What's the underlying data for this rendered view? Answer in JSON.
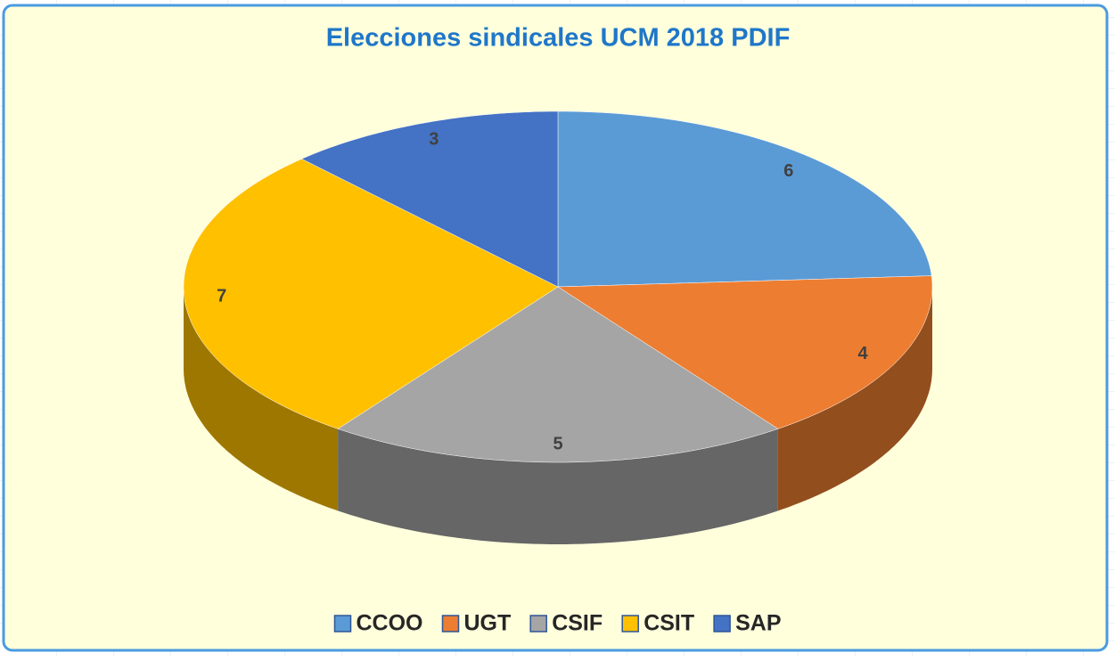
{
  "chart_data": {
    "type": "pie",
    "title": "Elecciones sindicales UCM 2018 PDIF",
    "categories": [
      "CCOO",
      "UGT",
      "CSIF",
      "CSIT",
      "SAP"
    ],
    "values": [
      6,
      4,
      5,
      7,
      3
    ],
    "colors": [
      "#5b9bd5",
      "#ed7d31",
      "#a5a5a5",
      "#ffc000",
      "#4472c4"
    ]
  }
}
